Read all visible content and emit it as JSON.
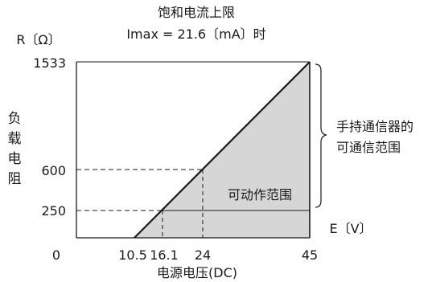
{
  "title": {
    "line1": "饱和电流上限",
    "line2": "Imax = 21.6〔mA〕时"
  },
  "axes": {
    "y_unit": "R〔Ω〕",
    "x_unit": "E〔V〕",
    "y_label_chars": [
      "负",
      "载",
      "电",
      "阻"
    ],
    "x_label": "电源电压(DC)",
    "origin_label": "0"
  },
  "y_ticks": [
    "1533",
    "600",
    "250"
  ],
  "x_ticks": [
    "10.5",
    "16.1",
    "24",
    "45"
  ],
  "regions": {
    "operable": "可动作范围",
    "handheld_line1": "手持通信器的",
    "handheld_line2": "可通信范围"
  },
  "chart_data": {
    "type": "area",
    "title": "饱和电流上限 Imax = 21.6〔mA〕时",
    "xlabel": "电源电压(DC)",
    "ylabel": "负载电阻",
    "x_unit": "V",
    "y_unit": "Ω",
    "xlim": [
      0,
      45
    ],
    "ylim": [
      0,
      1533
    ],
    "x_ticks": [
      10.5,
      16.1,
      24,
      45
    ],
    "y_ticks": [
      250,
      600,
      1533
    ],
    "boundary": {
      "x": [
        10.5,
        45
      ],
      "y": [
        0,
        1533
      ]
    },
    "reference_points": [
      {
        "x": 16.1,
        "y": 250
      },
      {
        "x": 24,
        "y": 600
      }
    ],
    "communication_range_min_resistance": 250,
    "grid": false
  }
}
